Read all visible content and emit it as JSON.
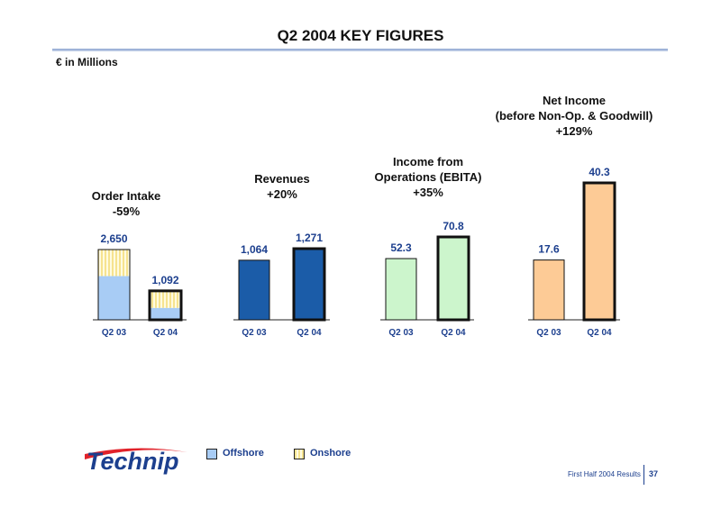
{
  "page": {
    "title": "Q2 2004 KEY FIGURES",
    "subtitle": "€  in Millions",
    "footer": "First Half 2004 Results",
    "page_number": "37",
    "logo_text": "Technip"
  },
  "legend": [
    {
      "name": "Offshore",
      "color": "#a8ccf5"
    },
    {
      "name": "Onshore",
      "color": "#f6e38f"
    }
  ],
  "colors": {
    "value_label": "#1c3f8e",
    "offshore": "#a8ccf5",
    "onshore": "#f6e38f",
    "revenues": "#1b5ca8",
    "ebita": "#ccf5cc",
    "net_income": "#fdcb96"
  },
  "chart_data": [
    {
      "type": "bar",
      "stacked": true,
      "title_lines": [
        "Order Intake",
        "-59%"
      ],
      "categories": [
        "Q2 03",
        "Q2 04"
      ],
      "totals": [
        "2,650",
        "1,092"
      ],
      "series": [
        {
          "name": "Offshore",
          "values": [
            1650,
            450
          ]
        },
        {
          "name": "Onshore",
          "values": [
            1000,
            642
          ]
        }
      ]
    },
    {
      "type": "bar",
      "title_lines": [
        "Revenues",
        "+20%"
      ],
      "categories": [
        "Q2 03",
        "Q2 04"
      ],
      "values": [
        1064,
        1271
      ],
      "labels": [
        "1,064",
        "1,271"
      ]
    },
    {
      "type": "bar",
      "title_lines": [
        "Income from",
        "Operations (EBITA)",
        "+35%"
      ],
      "categories": [
        "Q2 03",
        "Q2 04"
      ],
      "values": [
        52.3,
        70.8
      ],
      "labels": [
        "52.3",
        "70.8"
      ]
    },
    {
      "type": "bar",
      "title_lines": [
        "Net Income",
        "(before Non-Op. & Goodwill)",
        "+129%"
      ],
      "categories": [
        "Q2 03",
        "Q2 04"
      ],
      "values": [
        17.6,
        40.3
      ],
      "labels": [
        "17.6",
        "40.3"
      ]
    }
  ]
}
